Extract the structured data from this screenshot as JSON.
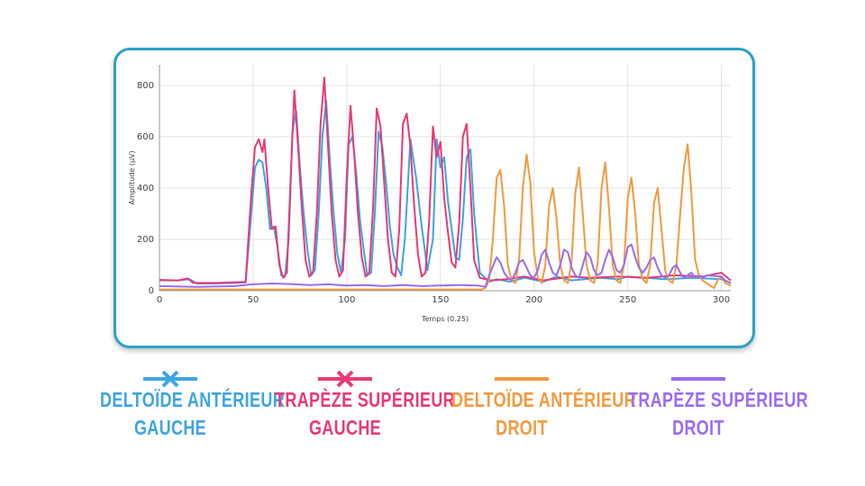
{
  "chart_data": {
    "type": "line",
    "xlabel": "Temps (0.25)",
    "ylabel": "Amplitude (µV)",
    "xlim": [
      0,
      305
    ],
    "ylim": [
      0,
      880
    ],
    "xticks": [
      0,
      50,
      100,
      150,
      200,
      250,
      300
    ],
    "yticks": [
      0,
      200,
      400,
      600,
      800
    ],
    "grid": true,
    "series": [
      {
        "name": "Deltoïde antérieur gauche",
        "color": "#3da5e0",
        "marker": "x",
        "points": [
          [
            0,
            40
          ],
          [
            10,
            40
          ],
          [
            16,
            45
          ],
          [
            20,
            28
          ],
          [
            30,
            28
          ],
          [
            40,
            30
          ],
          [
            46,
            32
          ],
          [
            49,
            300
          ],
          [
            51,
            480
          ],
          [
            53,
            510
          ],
          [
            55,
            500
          ],
          [
            57,
            400
          ],
          [
            59,
            240
          ],
          [
            61,
            250
          ],
          [
            63,
            170
          ],
          [
            65,
            60
          ],
          [
            67,
            55
          ],
          [
            69,
            200
          ],
          [
            71,
            620
          ],
          [
            73,
            700
          ],
          [
            75,
            480
          ],
          [
            77,
            300
          ],
          [
            79,
            160
          ],
          [
            81,
            60
          ],
          [
            83,
            80
          ],
          [
            85,
            300
          ],
          [
            87,
            600
          ],
          [
            89,
            740
          ],
          [
            91,
            500
          ],
          [
            93,
            300
          ],
          [
            95,
            140
          ],
          [
            97,
            70
          ],
          [
            99,
            200
          ],
          [
            101,
            570
          ],
          [
            103,
            600
          ],
          [
            105,
            460
          ],
          [
            107,
            280
          ],
          [
            109,
            160
          ],
          [
            111,
            60
          ],
          [
            113,
            70
          ],
          [
            115,
            300
          ],
          [
            117,
            620
          ],
          [
            119,
            560
          ],
          [
            121,
            420
          ],
          [
            123,
            250
          ],
          [
            125,
            140
          ],
          [
            127,
            90
          ],
          [
            129,
            60
          ],
          [
            131,
            200
          ],
          [
            134,
            590
          ],
          [
            137,
            440
          ],
          [
            140,
            250
          ],
          [
            142,
            140
          ],
          [
            143,
            80
          ],
          [
            146,
            200
          ],
          [
            148,
            590
          ],
          [
            150,
            480
          ],
          [
            152,
            520
          ],
          [
            154,
            350
          ],
          [
            156,
            240
          ],
          [
            158,
            130
          ],
          [
            160,
            120
          ],
          [
            162,
            280
          ],
          [
            164,
            520
          ],
          [
            166,
            550
          ],
          [
            168,
            300
          ],
          [
            171,
            70
          ],
          [
            176,
            35
          ],
          [
            180,
            45
          ],
          [
            187,
            35
          ],
          [
            195,
            50
          ],
          [
            205,
            35
          ],
          [
            212,
            55
          ],
          [
            220,
            40
          ],
          [
            235,
            50
          ],
          [
            245,
            45
          ],
          [
            250,
            55
          ],
          [
            270,
            45
          ],
          [
            285,
            50
          ],
          [
            300,
            45
          ],
          [
            305,
            30
          ]
        ]
      },
      {
        "name": "Trapèze supérieur gauche",
        "color": "#e83a78",
        "marker": "x",
        "points": [
          [
            0,
            42
          ],
          [
            10,
            40
          ],
          [
            15,
            48
          ],
          [
            18,
            30
          ],
          [
            30,
            30
          ],
          [
            46,
            34
          ],
          [
            49,
            380
          ],
          [
            51,
            560
          ],
          [
            53,
            590
          ],
          [
            55,
            540
          ],
          [
            56,
            590
          ],
          [
            58,
            400
          ],
          [
            60,
            240
          ],
          [
            62,
            250
          ],
          [
            64,
            100
          ],
          [
            66,
            50
          ],
          [
            68,
            70
          ],
          [
            70,
            430
          ],
          [
            72,
            780
          ],
          [
            74,
            560
          ],
          [
            76,
            320
          ],
          [
            78,
            120
          ],
          [
            80,
            55
          ],
          [
            82,
            75
          ],
          [
            84,
            300
          ],
          [
            86,
            650
          ],
          [
            88,
            830
          ],
          [
            90,
            560
          ],
          [
            92,
            300
          ],
          [
            94,
            120
          ],
          [
            96,
            55
          ],
          [
            98,
            80
          ],
          [
            100,
            450
          ],
          [
            102,
            720
          ],
          [
            104,
            530
          ],
          [
            106,
            300
          ],
          [
            108,
            130
          ],
          [
            110,
            55
          ],
          [
            112,
            70
          ],
          [
            114,
            320
          ],
          [
            116,
            710
          ],
          [
            118,
            640
          ],
          [
            120,
            420
          ],
          [
            122,
            200
          ],
          [
            124,
            70
          ],
          [
            126,
            55
          ],
          [
            128,
            240
          ],
          [
            130,
            650
          ],
          [
            132,
            690
          ],
          [
            134,
            560
          ],
          [
            136,
            330
          ],
          [
            138,
            140
          ],
          [
            140,
            55
          ],
          [
            142,
            70
          ],
          [
            144,
            270
          ],
          [
            146,
            640
          ],
          [
            148,
            520
          ],
          [
            150,
            580
          ],
          [
            152,
            360
          ],
          [
            154,
            230
          ],
          [
            156,
            110
          ],
          [
            158,
            90
          ],
          [
            160,
            260
          ],
          [
            162,
            600
          ],
          [
            164,
            650
          ],
          [
            166,
            400
          ],
          [
            168,
            120
          ],
          [
            171,
            50
          ],
          [
            177,
            40
          ],
          [
            185,
            45
          ],
          [
            195,
            55
          ],
          [
            205,
            40
          ],
          [
            220,
            55
          ],
          [
            230,
            50
          ],
          [
            245,
            55
          ],
          [
            260,
            50
          ],
          [
            275,
            60
          ],
          [
            290,
            55
          ],
          [
            300,
            70
          ],
          [
            305,
            40
          ]
        ]
      },
      {
        "name": "Deltoïde antérieur droit",
        "color": "#f39a3e",
        "marker": "line",
        "points": [
          [
            0,
            5
          ],
          [
            172,
            5
          ],
          [
            174,
            10
          ],
          [
            176,
            40
          ],
          [
            178,
            200
          ],
          [
            180,
            440
          ],
          [
            182,
            470
          ],
          [
            184,
            330
          ],
          [
            186,
            100
          ],
          [
            188,
            40
          ],
          [
            190,
            30
          ],
          [
            192,
            120
          ],
          [
            194,
            400
          ],
          [
            196,
            530
          ],
          [
            198,
            420
          ],
          [
            200,
            150
          ],
          [
            202,
            50
          ],
          [
            204,
            30
          ],
          [
            206,
            100
          ],
          [
            208,
            330
          ],
          [
            210,
            400
          ],
          [
            212,
            280
          ],
          [
            214,
            100
          ],
          [
            216,
            40
          ],
          [
            218,
            30
          ],
          [
            220,
            110
          ],
          [
            222,
            380
          ],
          [
            224,
            480
          ],
          [
            226,
            300
          ],
          [
            228,
            100
          ],
          [
            230,
            40
          ],
          [
            232,
            30
          ],
          [
            234,
            110
          ],
          [
            236,
            400
          ],
          [
            238,
            500
          ],
          [
            240,
            320
          ],
          [
            242,
            100
          ],
          [
            244,
            40
          ],
          [
            246,
            30
          ],
          [
            248,
            100
          ],
          [
            250,
            360
          ],
          [
            252,
            440
          ],
          [
            254,
            300
          ],
          [
            256,
            100
          ],
          [
            258,
            45
          ],
          [
            260,
            30
          ],
          [
            262,
            100
          ],
          [
            264,
            340
          ],
          [
            266,
            400
          ],
          [
            268,
            240
          ],
          [
            270,
            80
          ],
          [
            272,
            40
          ],
          [
            274,
            30
          ],
          [
            276,
            100
          ],
          [
            278,
            300
          ],
          [
            280,
            480
          ],
          [
            282,
            570
          ],
          [
            284,
            380
          ],
          [
            286,
            120
          ],
          [
            288,
            60
          ],
          [
            290,
            40
          ],
          [
            292,
            30
          ],
          [
            294,
            20
          ],
          [
            296,
            10
          ],
          [
            298,
            40
          ],
          [
            300,
            55
          ],
          [
            302,
            30
          ],
          [
            305,
            20
          ]
        ]
      },
      {
        "name": "Trapèze supérieur droit",
        "color": "#9b6cf0",
        "marker": "line",
        "points": [
          [
            0,
            18
          ],
          [
            20,
            15
          ],
          [
            40,
            18
          ],
          [
            50,
            25
          ],
          [
            60,
            28
          ],
          [
            70,
            26
          ],
          [
            80,
            22
          ],
          [
            90,
            25
          ],
          [
            100,
            20
          ],
          [
            110,
            22
          ],
          [
            120,
            18
          ],
          [
            130,
            22
          ],
          [
            140,
            18
          ],
          [
            150,
            20
          ],
          [
            160,
            22
          ],
          [
            170,
            20
          ],
          [
            174,
            15
          ],
          [
            176,
            60
          ],
          [
            180,
            130
          ],
          [
            182,
            110
          ],
          [
            184,
            70
          ],
          [
            186,
            50
          ],
          [
            188,
            40
          ],
          [
            190,
            70
          ],
          [
            192,
            110
          ],
          [
            194,
            120
          ],
          [
            196,
            90
          ],
          [
            198,
            60
          ],
          [
            200,
            50
          ],
          [
            202,
            80
          ],
          [
            204,
            140
          ],
          [
            206,
            160
          ],
          [
            208,
            110
          ],
          [
            210,
            70
          ],
          [
            212,
            60
          ],
          [
            214,
            100
          ],
          [
            216,
            160
          ],
          [
            218,
            150
          ],
          [
            220,
            90
          ],
          [
            222,
            60
          ],
          [
            224,
            50
          ],
          [
            226,
            100
          ],
          [
            228,
            150
          ],
          [
            230,
            130
          ],
          [
            232,
            80
          ],
          [
            234,
            60
          ],
          [
            236,
            70
          ],
          [
            238,
            120
          ],
          [
            240,
            160
          ],
          [
            242,
            130
          ],
          [
            244,
            80
          ],
          [
            246,
            70
          ],
          [
            248,
            100
          ],
          [
            250,
            170
          ],
          [
            252,
            180
          ],
          [
            254,
            130
          ],
          [
            256,
            90
          ],
          [
            258,
            70
          ],
          [
            260,
            90
          ],
          [
            262,
            120
          ],
          [
            264,
            130
          ],
          [
            266,
            90
          ],
          [
            268,
            60
          ],
          [
            270,
            50
          ],
          [
            272,
            60
          ],
          [
            274,
            90
          ],
          [
            276,
            100
          ],
          [
            278,
            70
          ],
          [
            280,
            50
          ],
          [
            282,
            60
          ],
          [
            284,
            70
          ],
          [
            286,
            50
          ],
          [
            288,
            60
          ],
          [
            290,
            50
          ],
          [
            292,
            60
          ],
          [
            300,
            55
          ],
          [
            302,
            40
          ],
          [
            305,
            30
          ]
        ]
      }
    ],
    "legend": [
      {
        "line1": "DELTOÏDE ANTÉRIEUR",
        "line2": "GAUCHE",
        "color": "#3da5e0",
        "marker": "x"
      },
      {
        "line1": "TRAPÈZE SUPÉRIEUR",
        "line2": "GAUCHE",
        "color": "#e83a78",
        "marker": "x"
      },
      {
        "line1": "DELTOÏDE ANTÉRIEUR",
        "line2": "DROIT",
        "color": "#f39a3e",
        "marker": "line"
      },
      {
        "line1": "TRAPÈZE SUPÉRIEUR",
        "line2": "DROIT",
        "color": "#9b6cf0",
        "marker": "line"
      }
    ]
  }
}
